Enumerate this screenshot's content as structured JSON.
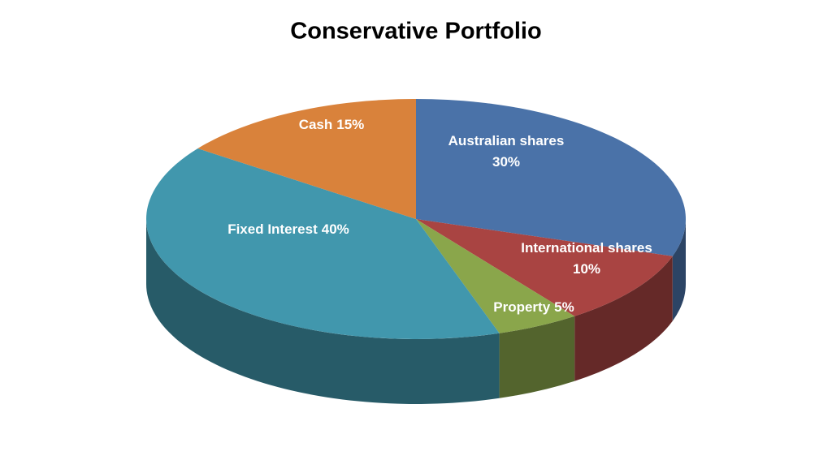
{
  "chart_data": {
    "type": "pie3d",
    "title": "Conservative Portfolio",
    "categories": [
      "Australian shares",
      "International shares",
      "Property",
      "Fixed Interest",
      "Cash"
    ],
    "values": [
      30,
      10,
      5,
      40,
      15
    ],
    "value_labels": [
      "30%",
      "10%",
      "5%",
      "40%",
      "15%"
    ],
    "colors": [
      "#4a72a8",
      "#a94442",
      "#8aa64b",
      "#4197ad",
      "#d9823b"
    ]
  }
}
